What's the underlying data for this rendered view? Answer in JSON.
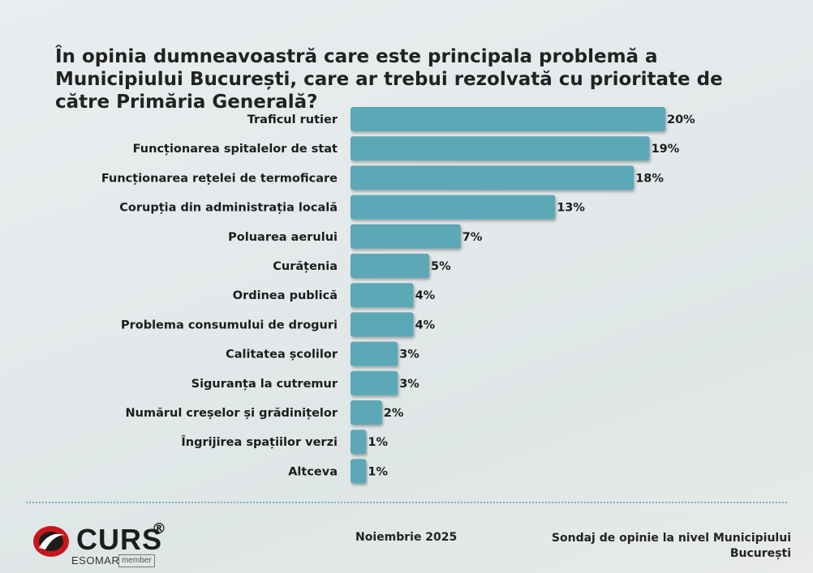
{
  "chart_data": {
    "type": "bar",
    "orientation": "horizontal",
    "title": "În opinia dumneavoastră care este principala problemă a Municipiului București, care ar trebui rezolvată cu prioritate de către Primăria Generală?",
    "categories": [
      "Traficul rutier",
      "Funcționarea spitalelor de stat",
      "Funcționarea rețelei de termoficare",
      "Corupția din administrația locală",
      "Poluarea aerului",
      "Curățenia",
      "Ordinea publică",
      "Problema consumului de droguri",
      "Calitatea școlilor",
      "Siguranța la cutremur",
      "Numărul creșelor și grădinițelor",
      "Îngrijirea spațiilor verzi",
      "Altceva"
    ],
    "values": [
      20,
      19,
      18,
      13,
      7,
      5,
      4,
      4,
      3,
      3,
      2,
      1,
      1
    ],
    "value_labels": [
      "20%",
      "19%",
      "18%",
      "13%",
      "7%",
      "5%",
      "4%",
      "4%",
      "3%",
      "3%",
      "2%",
      "1%",
      "1%"
    ],
    "unit": "%",
    "bar_color": "#5ba8b6",
    "grid": false,
    "legend": "none"
  },
  "footer": {
    "date": "Noiembrie 2025",
    "source": "Sondaj de opinie la nivel Municipiului București"
  },
  "logo": {
    "name": "CURS",
    "registered": "®",
    "esomar": "ESOMAR",
    "member": "member"
  },
  "colors": {
    "accent": "#5ba8b6",
    "logo_red": "#c8161d",
    "divider": "#6fb3b8"
  }
}
